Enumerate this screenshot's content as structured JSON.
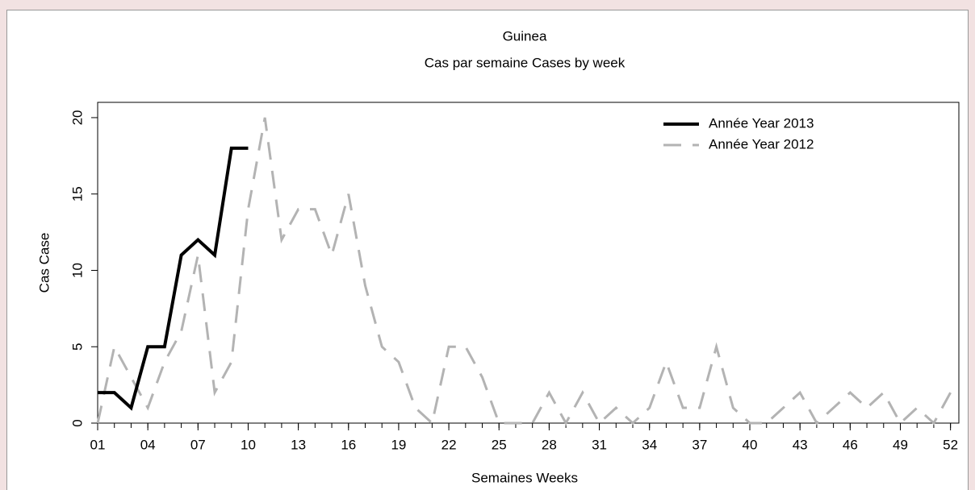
{
  "chart_data": {
    "type": "line",
    "title": "Guinea",
    "subtitle": "Cas par semaine Cases by week",
    "x_label": "Semaines Weeks",
    "y_label": "Cas Case",
    "x": [
      1,
      2,
      3,
      4,
      5,
      6,
      7,
      8,
      9,
      10,
      11,
      12,
      13,
      14,
      15,
      16,
      17,
      18,
      19,
      20,
      21,
      22,
      23,
      24,
      25,
      26,
      27,
      28,
      29,
      30,
      31,
      32,
      33,
      34,
      35,
      36,
      37,
      38,
      39,
      40,
      41,
      42,
      43,
      44,
      45,
      46,
      47,
      48,
      49,
      50,
      51,
      52
    ],
    "series": [
      {
        "name": "Année Year 2013",
        "color": "#000000",
        "dashed": false,
        "values": [
          2,
          2,
          1,
          5,
          5,
          11,
          12,
          11,
          18,
          18,
          null,
          null,
          null,
          null,
          null,
          null,
          null,
          null,
          null,
          null,
          null,
          null,
          null,
          null,
          null,
          null,
          null,
          null,
          null,
          null,
          null,
          null,
          null,
          null,
          null,
          null,
          null,
          null,
          null,
          null,
          null,
          null,
          null,
          null,
          null,
          null,
          null,
          null,
          null,
          null,
          null,
          null
        ]
      },
      {
        "name": "Année Year 2012",
        "color": "#b3b3b3",
        "dashed": true,
        "values": [
          0,
          5,
          3,
          1,
          4,
          6,
          11,
          2,
          4,
          14,
          20,
          12,
          14,
          14,
          11,
          15,
          9,
          5,
          4,
          1,
          0,
          5,
          5,
          3,
          0,
          0,
          0,
          2,
          0,
          2,
          0,
          1,
          0,
          1,
          4,
          1,
          1,
          5,
          1,
          0,
          0,
          1,
          2,
          0,
          1,
          2,
          1,
          2,
          0,
          1,
          0,
          2
        ]
      }
    ],
    "xlim": [
      1,
      52.5
    ],
    "ylim": [
      0,
      21
    ],
    "xticks": [
      {
        "value": 1,
        "label": "01"
      },
      {
        "value": 4,
        "label": "04"
      },
      {
        "value": 7,
        "label": "07"
      },
      10,
      13,
      16,
      19,
      22,
      25,
      28,
      31,
      34,
      37,
      40,
      43,
      46,
      49,
      52
    ],
    "xminorticks": [
      1,
      2,
      3,
      4,
      5,
      6,
      7,
      8,
      9,
      10,
      11,
      12,
      13,
      14,
      15,
      16,
      17,
      18,
      19,
      20,
      21,
      22,
      23,
      24,
      25,
      26,
      27,
      28,
      29,
      30,
      31,
      32,
      33,
      34,
      35,
      36,
      37,
      38,
      39,
      40,
      41,
      42,
      43,
      44,
      45,
      46,
      47,
      48,
      49,
      50,
      51,
      52
    ],
    "yticks": [
      0,
      5,
      10,
      15,
      20
    ],
    "legend": "top-right"
  }
}
